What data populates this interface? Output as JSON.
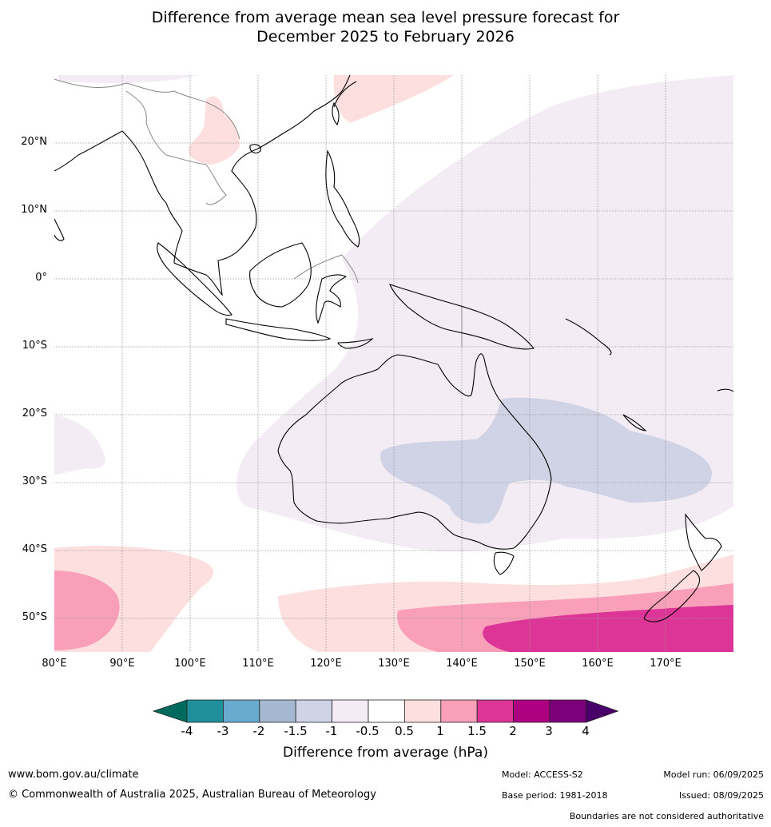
{
  "title": {
    "line1": "Difference from average mean sea level pressure forecast for",
    "line2": "December 2025 to February 2026"
  },
  "map": {
    "lat_ticks": [
      "20°N",
      "10°N",
      "0°",
      "10°S",
      "20°S",
      "30°S",
      "40°S",
      "50°S"
    ],
    "lon_ticks": [
      "80°E",
      "90°E",
      "100°E",
      "110°E",
      "120°E",
      "130°E",
      "140°E",
      "150°E",
      "160°E",
      "170°E"
    ],
    "region": "Australia, Indonesia, South-East Asia, New Zealand",
    "colors": {
      "coast": "#000000",
      "border": "#888888",
      "grid": "#999999",
      "anomaly_neg1_to_neg05": "#f3ecf4",
      "anomaly_neg15_to_neg1": "#d0d2e5",
      "anomaly_05_to_1": "#fddfe0",
      "anomaly_1_to_15": "#f99fb9",
      "anomaly_15_to_2": "#dc3597"
    }
  },
  "colorbar": {
    "labels": [
      "-4",
      "-3",
      "-2",
      "-1.5",
      "-1",
      "-0.5",
      "0.5",
      "1",
      "1.5",
      "2",
      "3",
      "4"
    ],
    "colors": [
      "#006a5e",
      "#1e8f9b",
      "#68aad0",
      "#a5b8d2",
      "#d0d2e5",
      "#f3ecf4",
      "#ffffff",
      "#fddfe0",
      "#f99fb9",
      "#dc3597",
      "#ad0181",
      "#7b007a",
      "#49006a"
    ],
    "title": "Difference from average (hPa)"
  },
  "footer": {
    "website": "www.bom.gov.au/climate",
    "copyright": "© Commonwealth of Australia 2025, Australian Bureau of Meteorology",
    "model": "Model: ACCESS-S2",
    "base_period": "Base period: 1981-2018",
    "model_run": "Model run: 06/09/2025",
    "issued": "Issued: 08/09/2025",
    "disclaimer": "Boundaries are not considered authoritative"
  }
}
